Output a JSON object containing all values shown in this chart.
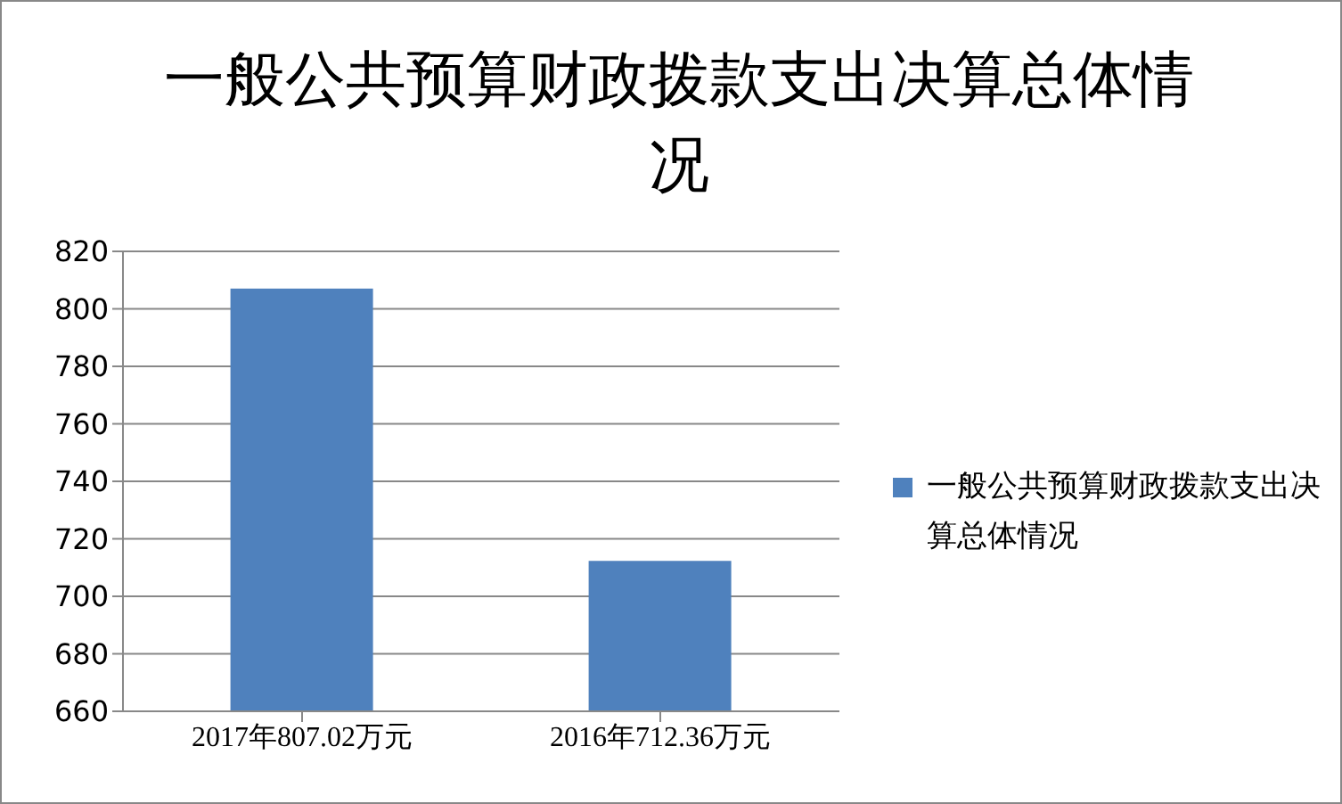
{
  "chart_data": {
    "type": "bar",
    "title": "一般公共预算财政拨款支出决算总体情况",
    "categories": [
      "2017年807.02万元",
      "2016年712.36万元"
    ],
    "series": [
      {
        "name": "一般公共预算财政拨款支出决算总体情况",
        "color": "#4f81bd",
        "values": [
          807.02,
          712.36
        ]
      }
    ],
    "ylim": [
      660,
      820
    ],
    "yticks": [
      660,
      680,
      700,
      720,
      740,
      760,
      780,
      800,
      820
    ],
    "grid": "y",
    "legend": "right"
  }
}
